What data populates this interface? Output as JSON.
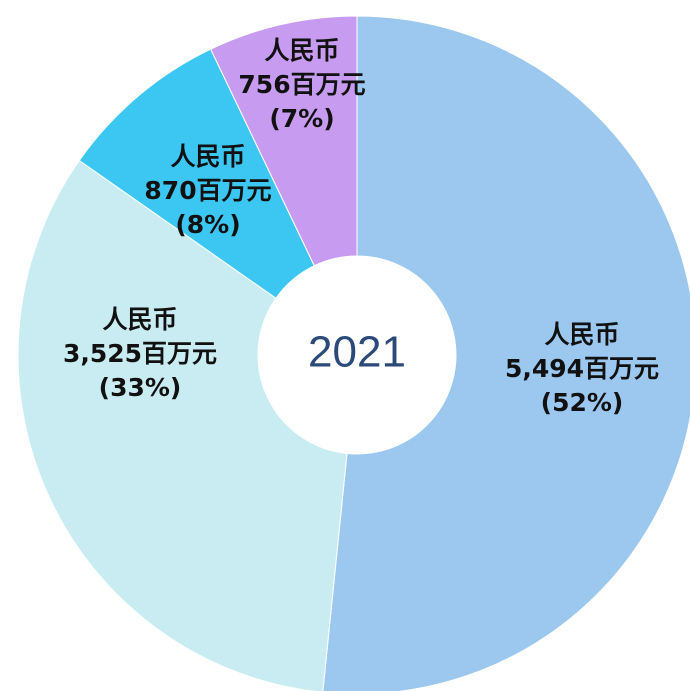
{
  "chart_data": {
    "type": "donut",
    "center_label": "2021",
    "values": [
      5494,
      3525,
      870,
      756
    ],
    "currency_labels": [
      "人民币",
      "人民币",
      "人民币",
      "人民币"
    ],
    "value_labels": [
      "5,494百万元",
      "3,525百万元",
      "870百万元",
      "756百万元"
    ],
    "percentages": [
      52,
      33,
      8,
      7
    ],
    "percent_labels": [
      "(52%)",
      "(33%)",
      "(8%)",
      "(7%)"
    ],
    "colors": [
      "#9cc8f0",
      "#c9ecf2",
      "#3cc6f2",
      "#c79bf0"
    ]
  }
}
